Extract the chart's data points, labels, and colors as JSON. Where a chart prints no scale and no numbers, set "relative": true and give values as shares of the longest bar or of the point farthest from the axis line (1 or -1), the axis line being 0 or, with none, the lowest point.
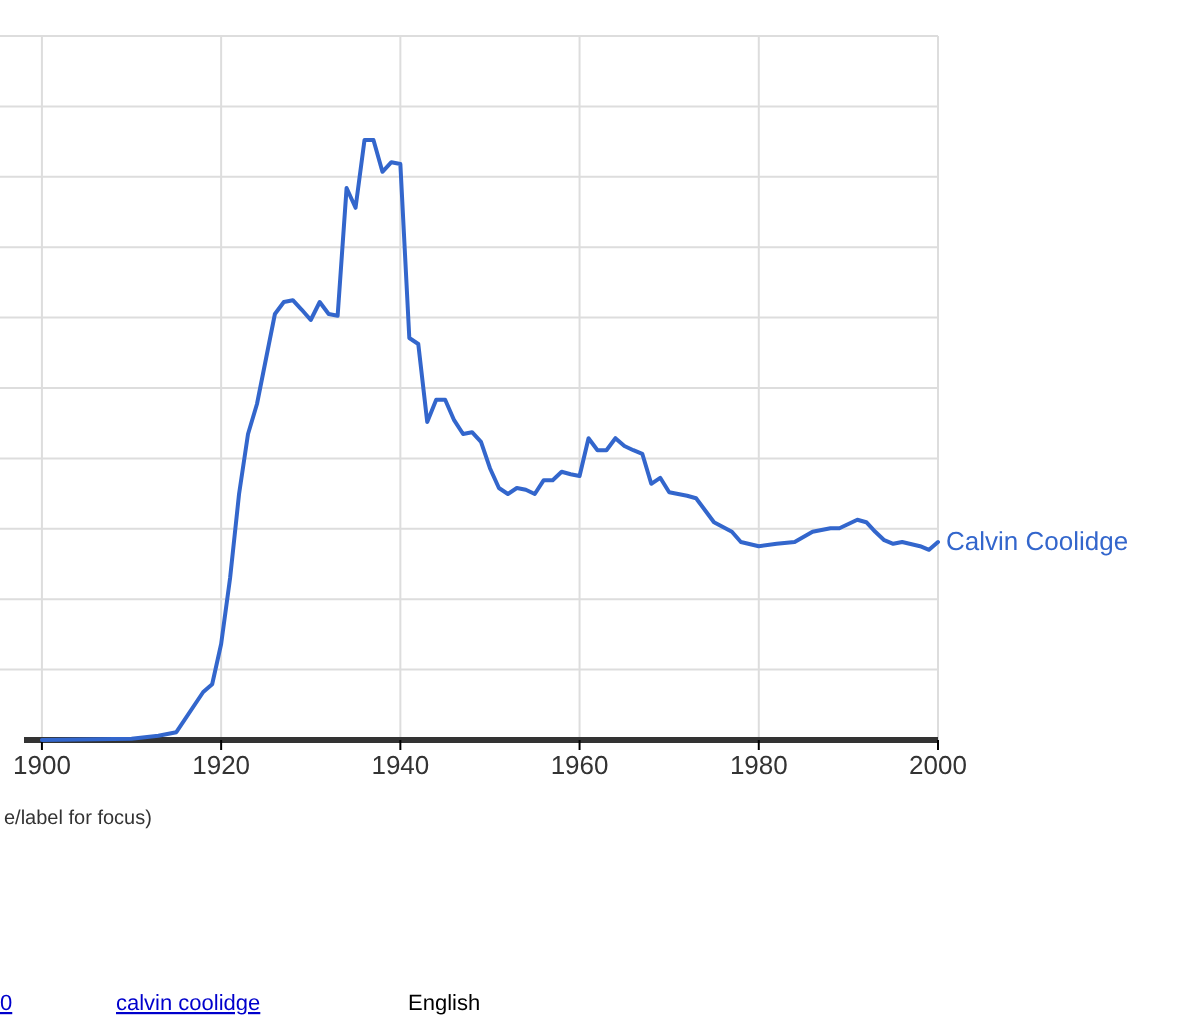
{
  "chart_data": {
    "type": "line",
    "relative": true,
    "xlim": [
      1898,
      2000
    ],
    "xticks": [
      1900,
      1920,
      1940,
      1960,
      1980,
      2000
    ],
    "grid": true,
    "x": [
      1900,
      1910,
      1913,
      1915,
      1918,
      1919,
      1920,
      1921,
      1922,
      1923,
      1924,
      1926,
      1927,
      1928,
      1929,
      1930,
      1931,
      1932,
      1933,
      1934,
      1935,
      1936,
      1937,
      1938,
      1939,
      1940,
      1941,
      1942,
      1943,
      1944,
      1945,
      1946,
      1947,
      1948,
      1949,
      1950,
      1951,
      1952,
      1953,
      1954,
      1955,
      1956,
      1957,
      1958,
      1959,
      1960,
      1961,
      1962,
      1963,
      1964,
      1965,
      1966,
      1967,
      1968,
      1969,
      1970,
      1972,
      1973,
      1974,
      1975,
      1977,
      1978,
      1980,
      1982,
      1984,
      1986,
      1988,
      1989,
      1990,
      1991,
      1992,
      1993,
      1994,
      1995,
      1996,
      1998,
      1999,
      2000
    ],
    "series": [
      {
        "name": "Calvin Coolidge",
        "color": "#3366cc",
        "values": [
          0,
          0.002,
          0.007,
          0.013,
          0.08,
          0.093,
          0.16,
          0.27,
          0.41,
          0.51,
          0.56,
          0.71,
          0.73,
          0.733,
          0.717,
          0.7,
          0.73,
          0.71,
          0.707,
          0.92,
          0.887,
          1,
          1,
          0.947,
          0.963,
          0.96,
          0.67,
          0.66,
          0.53,
          0.567,
          0.567,
          0.533,
          0.51,
          0.513,
          0.497,
          0.453,
          0.42,
          0.41,
          0.42,
          0.417,
          0.41,
          0.433,
          0.433,
          0.447,
          0.443,
          0.44,
          0.503,
          0.483,
          0.483,
          0.503,
          0.49,
          0.483,
          0.477,
          0.427,
          0.437,
          0.413,
          0.407,
          0.403,
          0.383,
          0.363,
          0.347,
          0.33,
          0.323,
          0.327,
          0.33,
          0.347,
          0.353,
          0.353,
          0.36,
          0.367,
          0.363,
          0.347,
          0.333,
          0.327,
          0.33,
          0.323,
          0.317,
          0.33
        ]
      }
    ],
    "annotations": [
      "e/label for focus)",
      "0",
      "calvin coolidge",
      "English"
    ]
  }
}
